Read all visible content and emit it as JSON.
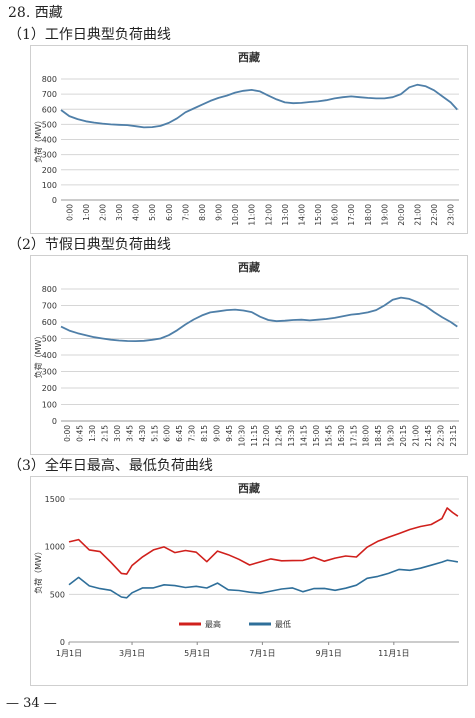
{
  "section_title": "28. 西藏",
  "panels": [
    {
      "heading": "（1）工作日典型负荷曲线"
    },
    {
      "heading": "（2）节假日典型负荷曲线"
    },
    {
      "heading": "（3）全年日最高、最低负荷曲线"
    }
  ],
  "page_number": "— 34 —",
  "chart_data": [
    {
      "type": "line",
      "title": "西藏",
      "ylabel": "负荷（MW）",
      "ylim": [
        0,
        800
      ],
      "yticks": [
        0,
        100,
        200,
        300,
        400,
        500,
        600,
        700,
        800
      ],
      "x_tick_labels": [
        "0:00",
        "1:00",
        "2:00",
        "3:00",
        "4:00",
        "5:00",
        "6:00",
        "7:00",
        "8:00",
        "9:00",
        "10:00",
        "11:00",
        "12:00",
        "13:00",
        "14:00",
        "15:00",
        "16:00",
        "17:00",
        "18:00",
        "19:00",
        "20:00",
        "21:00",
        "22:00",
        "23:00"
      ],
      "x_hours": [
        0,
        0.5,
        1,
        1.5,
        2,
        2.5,
        3,
        3.5,
        4,
        4.5,
        5,
        5.5,
        6,
        6.5,
        7,
        7.5,
        8,
        8.5,
        9,
        9.5,
        10,
        10.5,
        11,
        11.5,
        12,
        12.5,
        13,
        13.5,
        14,
        14.5,
        15,
        15.5,
        16,
        16.5,
        17,
        17.5,
        18,
        18.5,
        19,
        19.5,
        20,
        20.5,
        21,
        21.5,
        22,
        22.5,
        23,
        23.5,
        23.9
      ],
      "series": [
        {
          "color": "#4f7fa8",
          "values": [
            595,
            555,
            535,
            520,
            512,
            505,
            500,
            497,
            495,
            488,
            480,
            482,
            490,
            510,
            540,
            580,
            605,
            630,
            655,
            675,
            690,
            710,
            722,
            728,
            718,
            690,
            665,
            645,
            640,
            642,
            648,
            652,
            660,
            672,
            680,
            685,
            680,
            675,
            672,
            672,
            680,
            700,
            745,
            762,
            752,
            725,
            685,
            645,
            598
          ]
        }
      ],
      "grid": true
    },
    {
      "type": "line",
      "title": "西藏",
      "ylabel": "负荷（MW）",
      "ylim": [
        0,
        800
      ],
      "yticks": [
        0,
        100,
        200,
        300,
        400,
        500,
        600,
        700,
        800
      ],
      "x_tick_labels": [
        "0:00",
        "0:45",
        "1:30",
        "2:15",
        "3:00",
        "3:45",
        "4:30",
        "5:15",
        "6:00",
        "6:45",
        "7:30",
        "8:15",
        "9:00",
        "9:45",
        "10:30",
        "11:15",
        "12:00",
        "12:45",
        "13:30",
        "14:15",
        "15:00",
        "15:45",
        "16:30",
        "17:15",
        "18:00",
        "18:45",
        "19:30",
        "20:15",
        "21:00",
        "21:45",
        "22:30",
        "23:15"
      ],
      "x_hours": [
        0,
        0.5,
        1,
        1.5,
        2,
        2.5,
        3,
        3.5,
        4,
        4.5,
        5,
        5.5,
        6,
        6.5,
        7,
        7.5,
        8,
        8.5,
        9,
        9.5,
        10,
        10.5,
        11,
        11.5,
        12,
        12.5,
        13,
        13.5,
        14,
        14.5,
        15,
        15.5,
        16,
        16.5,
        17,
        17.5,
        18,
        18.5,
        19,
        19.5,
        20,
        20.5,
        21,
        21.5,
        22,
        22.5,
        23,
        23.5,
        23.9
      ],
      "series": [
        {
          "color": "#4f7fa8",
          "values": [
            572,
            548,
            532,
            520,
            508,
            500,
            493,
            488,
            485,
            484,
            486,
            492,
            500,
            520,
            550,
            585,
            615,
            640,
            658,
            665,
            672,
            675,
            670,
            660,
            632,
            612,
            605,
            608,
            612,
            614,
            610,
            614,
            618,
            625,
            635,
            645,
            650,
            658,
            672,
            700,
            735,
            748,
            740,
            720,
            695,
            660,
            628,
            600,
            572
          ]
        }
      ],
      "grid": true
    },
    {
      "type": "line",
      "title": "西藏",
      "ylabel": "负荷（MW）",
      "ylim": [
        0,
        1500
      ],
      "yticks": [
        0,
        500,
        1000,
        1500
      ],
      "x_tick_labels": [
        "1月1日",
        "3月1日",
        "5月1日",
        "7月1日",
        "9月1日",
        "11月1日"
      ],
      "x_tick_days": [
        1,
        60,
        121,
        182,
        244,
        305
      ],
      "x_days": [
        1,
        10,
        20,
        30,
        40,
        50,
        55,
        60,
        70,
        80,
        90,
        100,
        110,
        120,
        130,
        140,
        150,
        160,
        170,
        180,
        190,
        200,
        210,
        220,
        230,
        240,
        250,
        260,
        270,
        280,
        290,
        300,
        310,
        320,
        330,
        340,
        350,
        355,
        360,
        365
      ],
      "series": [
        {
          "name": "最高",
          "color": "#d0201c",
          "values": [
            1050,
            1080,
            960,
            930,
            850,
            720,
            700,
            820,
            900,
            960,
            980,
            950,
            960,
            930,
            860,
            960,
            910,
            850,
            820,
            840,
            860,
            870,
            860,
            850,
            870,
            860,
            880,
            890,
            910,
            1000,
            1050,
            1080,
            1150,
            1180,
            1200,
            1250,
            1300,
            1400,
            1340,
            1320
          ]
        },
        {
          "name": "最低",
          "color": "#2f6f9a",
          "values": [
            600,
            660,
            600,
            560,
            530,
            490,
            470,
            510,
            550,
            580,
            600,
            580,
            590,
            590,
            560,
            600,
            560,
            540,
            510,
            530,
            540,
            550,
            550,
            540,
            560,
            550,
            560,
            570,
            590,
            650,
            700,
            720,
            750,
            770,
            780,
            800,
            820,
            870,
            850,
            840
          ]
        }
      ],
      "legend": "bottom-center",
      "grid": true
    }
  ]
}
